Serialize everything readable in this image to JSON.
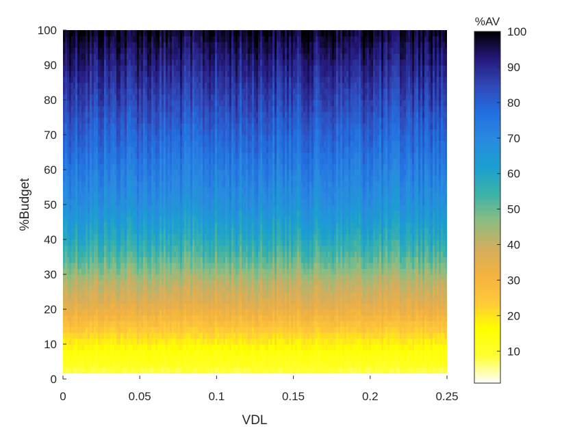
{
  "chart_data": {
    "type": "heatmap",
    "title": "",
    "xlabel": "VDL",
    "ylabel": "%Budget",
    "xlim": [
      0,
      0.25
    ],
    "ylim": [
      0,
      100
    ],
    "x_ticks": [
      {
        "value": 0,
        "label": "0"
      },
      {
        "value": 0.05,
        "label": "0.05"
      },
      {
        "value": 0.1,
        "label": "0.1"
      },
      {
        "value": 0.15,
        "label": "0.15"
      },
      {
        "value": 0.2,
        "label": "0.2"
      },
      {
        "value": 0.25,
        "label": "0.25"
      }
    ],
    "y_ticks": [
      {
        "value": 0,
        "label": "0"
      },
      {
        "value": 10,
        "label": "10"
      },
      {
        "value": 20,
        "label": "20"
      },
      {
        "value": 30,
        "label": "30"
      },
      {
        "value": 40,
        "label": "40"
      },
      {
        "value": 50,
        "label": "50"
      },
      {
        "value": 60,
        "label": "60"
      },
      {
        "value": 70,
        "label": "70"
      },
      {
        "value": 80,
        "label": "80"
      },
      {
        "value": 90,
        "label": "90"
      },
      {
        "value": 100,
        "label": "100"
      }
    ],
    "colorbar": {
      "title": "%AV",
      "range": [
        1,
        100
      ],
      "ticks": [
        {
          "value": 10,
          "label": "10"
        },
        {
          "value": 20,
          "label": "20"
        },
        {
          "value": 30,
          "label": "30"
        },
        {
          "value": 40,
          "label": "40"
        },
        {
          "value": 50,
          "label": "50"
        },
        {
          "value": 60,
          "label": "60"
        },
        {
          "value": 70,
          "label": "70"
        },
        {
          "value": 80,
          "label": "80"
        },
        {
          "value": 90,
          "label": "90"
        },
        {
          "value": 100,
          "label": "100"
        }
      ],
      "colormap": [
        "#ffffff",
        "#ffff33",
        "#ffff00",
        "#ffc83a",
        "#f3b23f",
        "#d2ae5e",
        "#8bbd82",
        "#3bb2a8",
        "#1a9fd0",
        "#2a8ae0",
        "#236fe0",
        "#3048b8",
        "#25187a",
        "#000000"
      ]
    },
    "grid": false,
    "rows": [
      {
        "budget": 0,
        "av": 1
      },
      {
        "budget": 3,
        "av": 10
      },
      {
        "budget": 8,
        "av": 15
      },
      {
        "budget": 13,
        "av": 22
      },
      {
        "budget": 18,
        "av": 30
      },
      {
        "budget": 22,
        "av": 36
      },
      {
        "budget": 28,
        "av": 42
      },
      {
        "budget": 35,
        "av": 52
      },
      {
        "budget": 42,
        "av": 60
      },
      {
        "budget": 50,
        "av": 67
      },
      {
        "budget": 60,
        "av": 73
      },
      {
        "budget": 70,
        "av": 79
      },
      {
        "budget": 80,
        "av": 85
      },
      {
        "budget": 90,
        "av": 91
      },
      {
        "budget": 96,
        "av": 95
      },
      {
        "budget": 100,
        "av": 98
      }
    ]
  }
}
